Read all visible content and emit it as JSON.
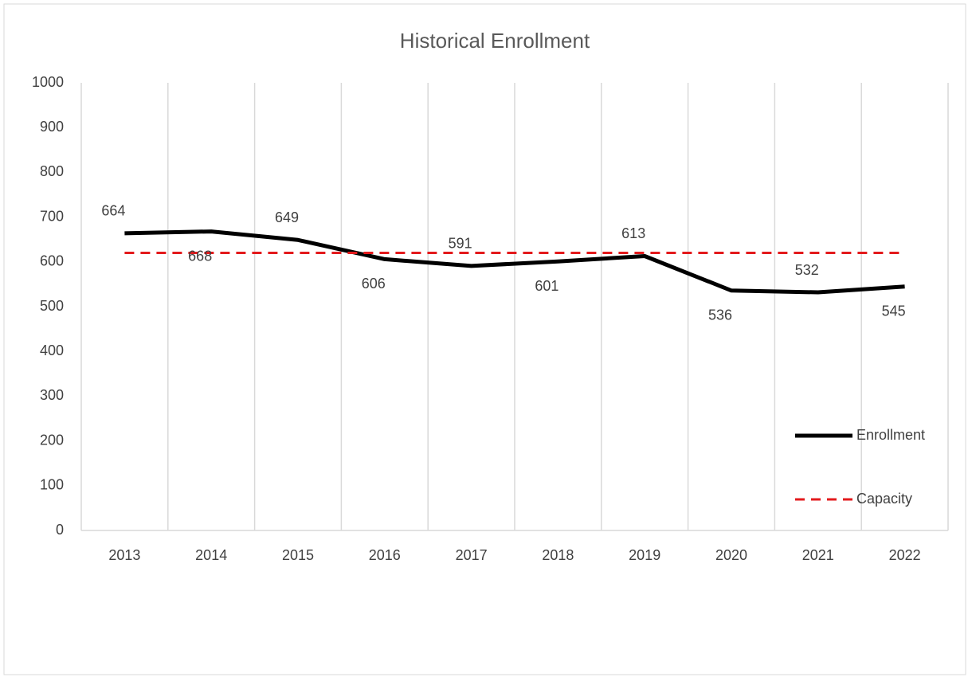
{
  "chart_data": {
    "type": "line",
    "title": "Historical Enrollment",
    "categories": [
      "2013",
      "2014",
      "2015",
      "2016",
      "2017",
      "2018",
      "2019",
      "2020",
      "2021",
      "2022"
    ],
    "series": [
      {
        "name": "Enrollment",
        "color": "#000000",
        "values": [
          664,
          668,
          649,
          606,
          591,
          601,
          613,
          536,
          532,
          545
        ]
      },
      {
        "name": "Capacity",
        "color": "#e31a1c",
        "dashed": true,
        "values": [
          620,
          620,
          620,
          620,
          620,
          620,
          620,
          620,
          620,
          620
        ]
      }
    ],
    "ylim": [
      0,
      1000
    ],
    "yticks": [
      0,
      100,
      200,
      300,
      400,
      500,
      600,
      700,
      800,
      900,
      1000
    ],
    "grid": true,
    "legend": "right"
  }
}
